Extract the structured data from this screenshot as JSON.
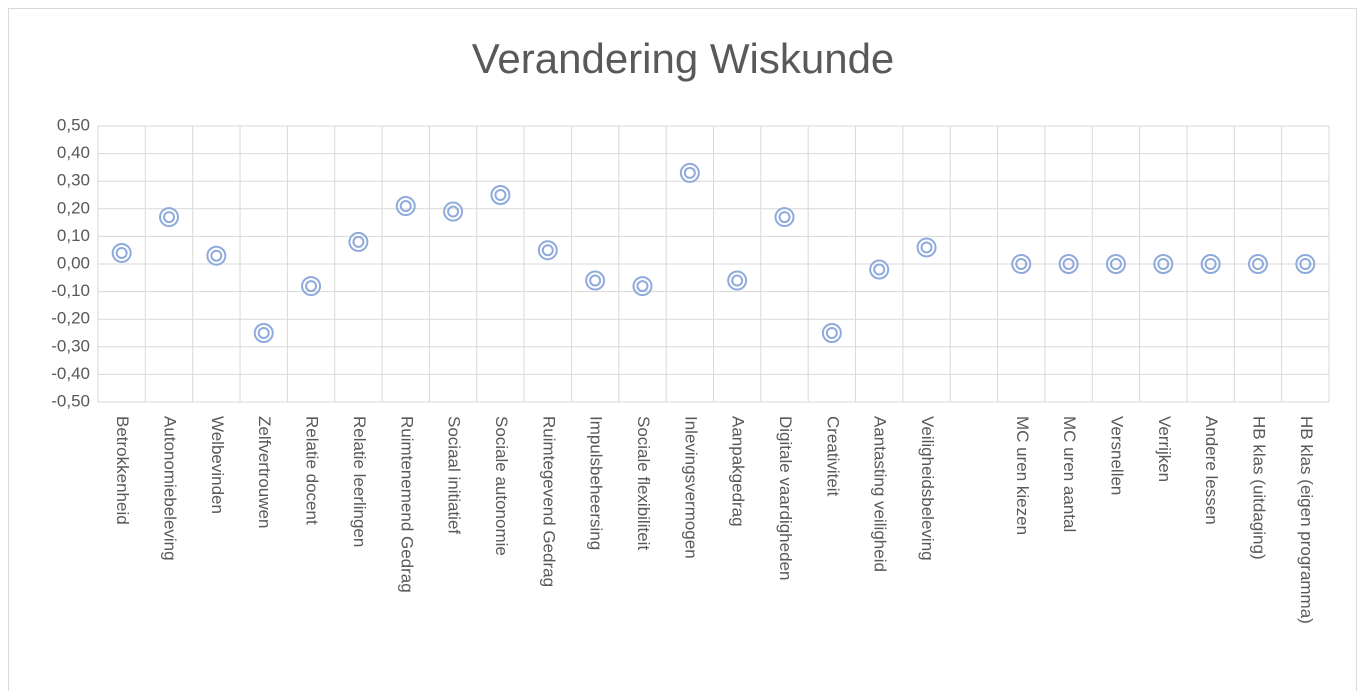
{
  "chart_data": {
    "type": "scatter",
    "title": "Verandering Wiskunde",
    "categories": [
      "Betrokkenheid",
      "Autonomiebeleving",
      "Welbevinden",
      "Zelfvertrouwen",
      "Relatie docent",
      "Relatie leerlingen",
      "Ruimtenemend Gedrag",
      "Sociaal initiatief",
      "Sociale autonomie",
      "Ruimtegevend Gedrag",
      "Impulsbeheersing",
      "Sociale flexibiliteit",
      "Inlevingsvermogen",
      "Aanpakgedrag",
      "Digitale vaardigheden",
      "Creativiteit",
      "Aantasting veiligheid",
      "Veiligheidsbeleving",
      null,
      "MC uren kiezen",
      "MC uren aantal",
      "Versnellen",
      "Verrijken",
      "Andere lessen",
      "HB klas (uitdaging)",
      "HB klas (eigen programma)"
    ],
    "values": [
      0.04,
      0.17,
      0.03,
      -0.25,
      -0.08,
      0.08,
      0.21,
      0.19,
      0.25,
      0.05,
      -0.06,
      -0.08,
      0.33,
      -0.06,
      0.17,
      -0.25,
      -0.02,
      0.06,
      null,
      0,
      0,
      0,
      0,
      0,
      0,
      0
    ],
    "color": "#8faadc",
    "ylim": [
      -0.5,
      0.5
    ],
    "yticks": [
      {
        "value": -0.5,
        "label": "-0,50"
      },
      {
        "value": -0.4,
        "label": "-0,40"
      },
      {
        "value": -0.3,
        "label": "-0,30"
      },
      {
        "value": -0.2,
        "label": "-0,20"
      },
      {
        "value": -0.1,
        "label": "-0,10"
      },
      {
        "value": 0,
        "label": "0,00"
      },
      {
        "value": 0.1,
        "label": "0,10"
      },
      {
        "value": 0.2,
        "label": "0,20"
      },
      {
        "value": 0.3,
        "label": "0,30"
      },
      {
        "value": 0.4,
        "label": "0,40"
      },
      {
        "value": 0.5,
        "label": "0,50"
      }
    ],
    "grid": true
  }
}
